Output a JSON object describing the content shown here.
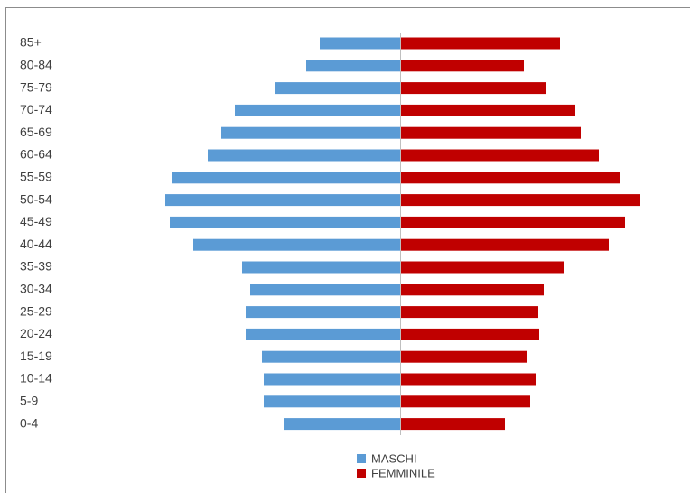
{
  "chart_data": {
    "type": "pyramid",
    "categories": [
      "85+",
      "80-84",
      "75-79",
      "70-74",
      "65-69",
      "60-64",
      "55-59",
      "50-54",
      "45-49",
      "40-44",
      "35-39",
      "30-34",
      "25-29",
      "20-24",
      "15-19",
      "10-14",
      "5-9",
      "0-4"
    ],
    "series": [
      {
        "name": "MASCHI",
        "color": "#5b9bd5",
        "values": [
          89,
          104,
          139,
          183,
          198,
          213,
          253,
          260,
          255,
          229,
          175,
          166,
          171,
          171,
          153,
          151,
          151,
          128
        ]
      },
      {
        "name": "FEMMINILE",
        "color": "#c00000",
        "values": [
          177,
          137,
          162,
          194,
          200,
          220,
          244,
          266,
          249,
          231,
          182,
          159,
          153,
          154,
          140,
          150,
          144,
          116
        ]
      }
    ]
  }
}
